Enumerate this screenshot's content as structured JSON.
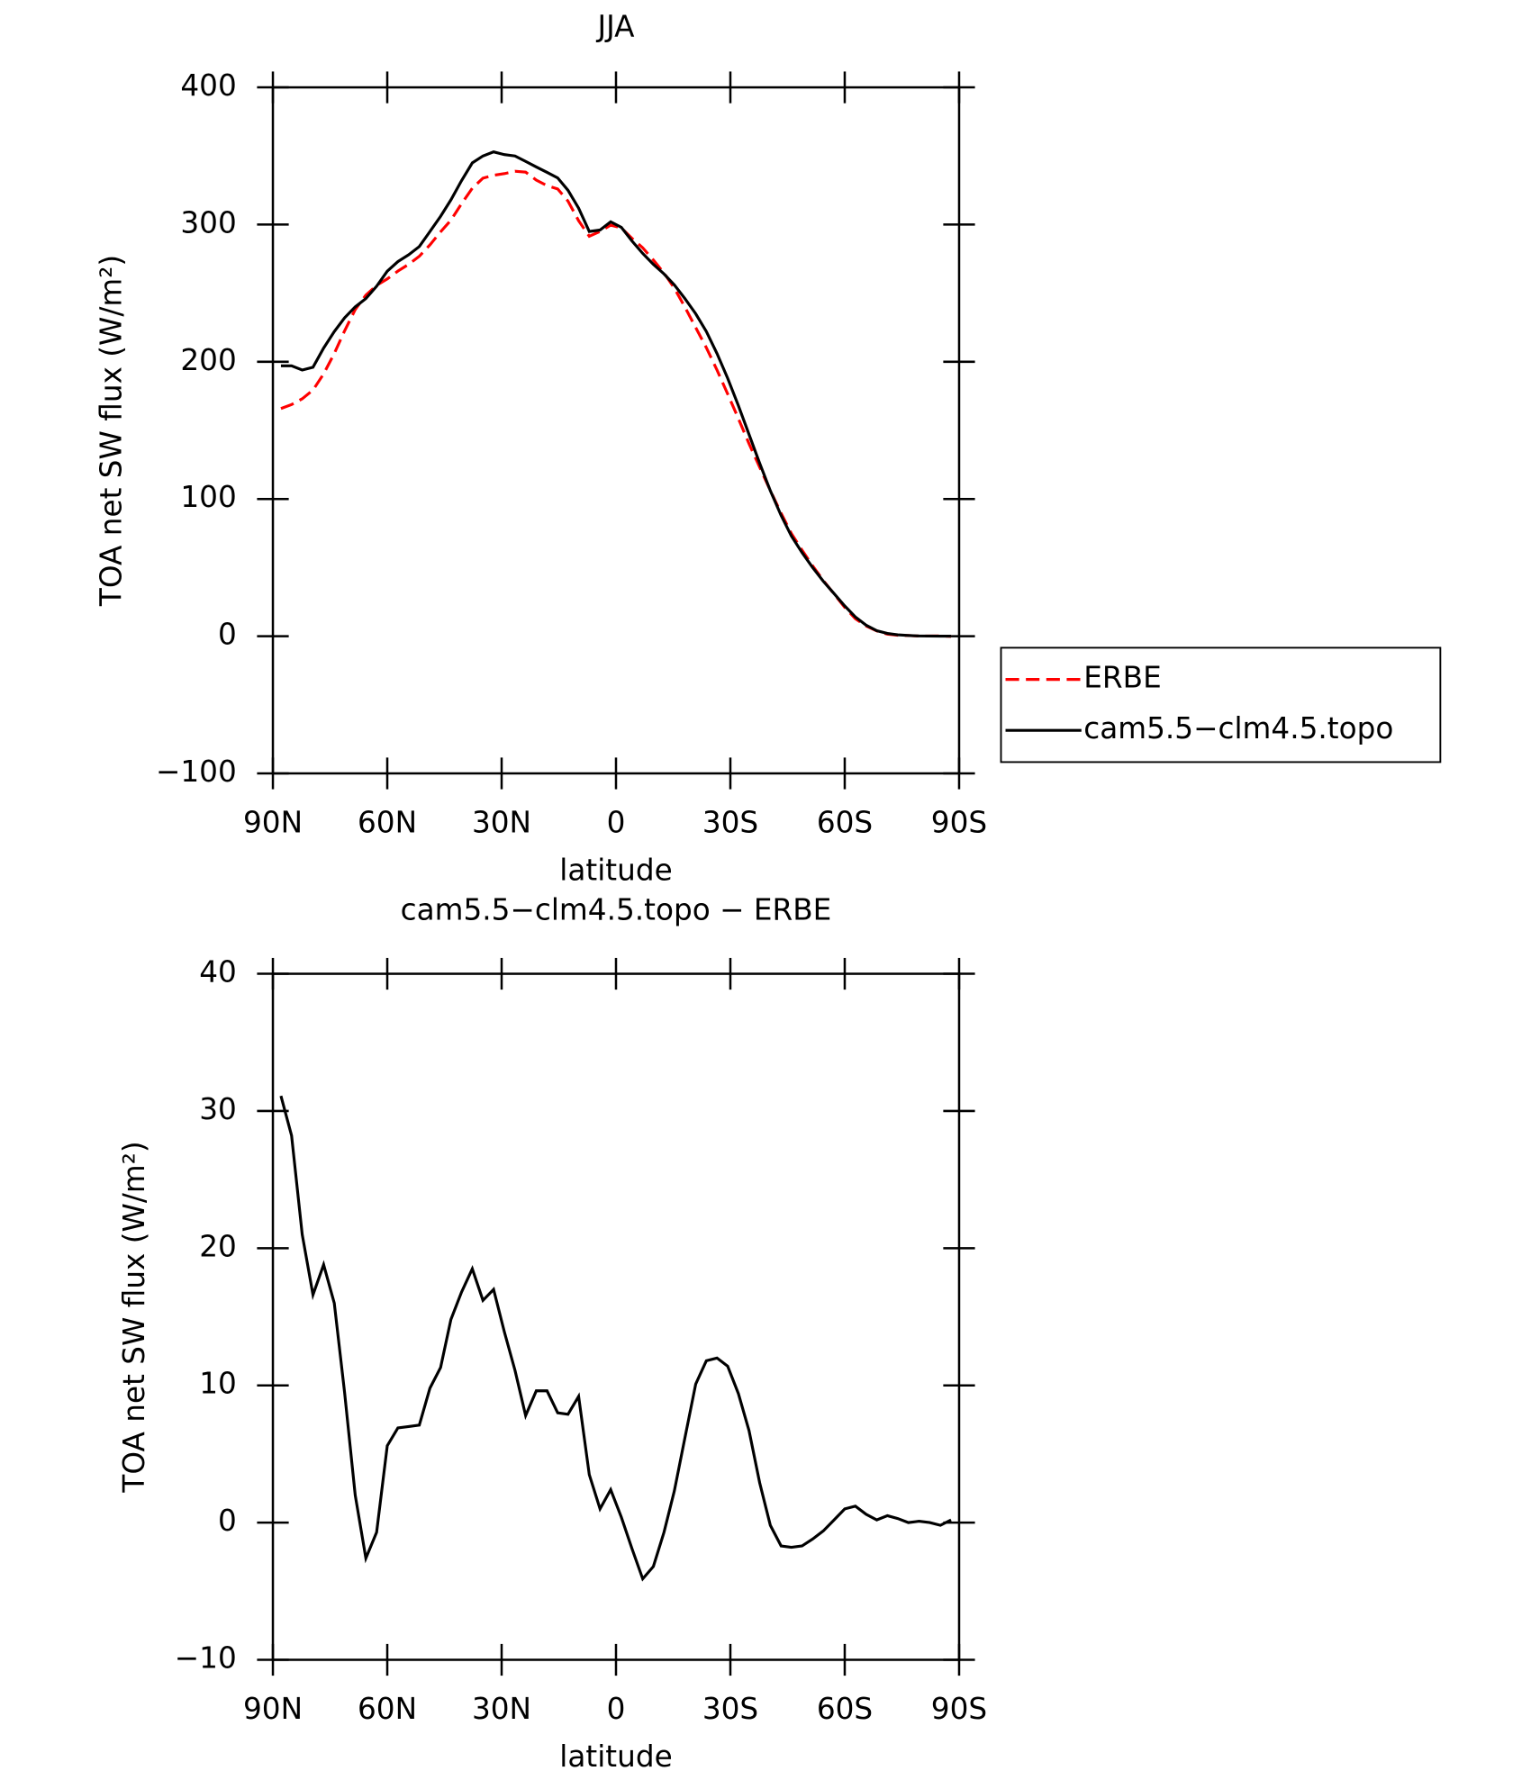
{
  "chart_data": [
    {
      "type": "line",
      "title": "JJA",
      "xlabel": "latitude",
      "ylabel": "TOA net SW flux (W/m²)",
      "x": [
        87.9,
        85.1,
        82.3,
        79.5,
        76.7,
        73.9,
        71.2,
        68.4,
        65.6,
        62.8,
        60.0,
        57.2,
        54.4,
        51.6,
        48.8,
        46.0,
        43.3,
        40.5,
        37.7,
        34.9,
        32.1,
        29.3,
        26.5,
        23.7,
        20.9,
        18.1,
        15.3,
        12.6,
        9.8,
        7.0,
        4.2,
        1.4,
        -1.4,
        -4.2,
        -7.0,
        -9.8,
        -12.6,
        -15.3,
        -18.1,
        -20.9,
        -23.7,
        -26.5,
        -29.3,
        -32.1,
        -34.9,
        -37.7,
        -40.5,
        -43.3,
        -46.0,
        -48.8,
        -51.6,
        -54.4,
        -57.2,
        -60.0,
        -62.8,
        -65.6,
        -68.4,
        -71.2,
        -73.9,
        -76.7,
        -79.5,
        -82.3,
        -85.1,
        -87.9
      ],
      "series": [
        {
          "name": "ERBE",
          "color": "#ff0000",
          "dash": true,
          "values": [
            165.9,
            168.8,
            173,
            179.4,
            191.2,
            206,
            222.5,
            238,
            248.6,
            255.7,
            260.4,
            266.1,
            271,
            276.9,
            285.2,
            294.7,
            303.2,
            315.2,
            326.5,
            333.8,
            336,
            337.1,
            338.9,
            338.2,
            332.4,
            328.4,
            326,
            317.1,
            302.8,
            291.5,
            295,
            299.6,
            297.6,
            289.9,
            283.1,
            274.2,
            264.7,
            253.7,
            239.8,
            224.9,
            210.2,
            194,
            176.6,
            158.6,
            140.3,
            123.1,
            106.2,
            89.7,
            74.8,
            62.7,
            51.2,
            40.6,
            30.8,
            21,
            12.8,
            7.4,
            3.8,
            1.5,
            0.7,
            0.5,
            0.1,
            0.1,
            0.2,
            -0.2
          ]
        },
        {
          "name": "cam5.5−clm4.5.topo",
          "color": "#000000",
          "dash": false,
          "values": [
            197,
            197,
            194,
            196,
            210,
            222,
            232,
            240,
            246,
            255,
            266,
            273,
            278,
            284,
            295,
            306,
            318,
            332,
            345,
            350,
            353,
            351,
            350,
            346,
            342,
            338,
            334,
            325,
            312,
            295,
            296,
            302,
            298,
            288,
            279,
            271,
            264,
            256,
            246,
            235,
            222,
            206,
            188,
            168,
            147,
            126,
            106,
            88,
            73,
            61,
            50,
            40,
            31,
            22,
            14,
            8,
            4,
            2,
            1,
            0.5,
            0.2,
            0.1,
            0,
            0
          ]
        }
      ],
      "xlim": [
        90,
        -90
      ],
      "xticks": [
        {
          "value": 90,
          "label": "90N"
        },
        {
          "value": 60,
          "label": "60N"
        },
        {
          "value": 30,
          "label": "30N"
        },
        0,
        {
          "value": -30,
          "label": "30S"
        },
        {
          "value": -60,
          "label": "60S"
        },
        {
          "value": -90,
          "label": "90S"
        }
      ],
      "ylim": [
        -100,
        400
      ],
      "yticks": [
        {
          "value": -100,
          "label": "−100"
        },
        0,
        100,
        200,
        300,
        400
      ],
      "legend": "right"
    },
    {
      "type": "line",
      "title": "cam5.5−clm4.5.topo − ERBE",
      "xlabel": "latitude",
      "ylabel": "TOA net SW flux (W/m²)",
      "x": [
        87.9,
        85.1,
        82.3,
        79.5,
        76.7,
        73.9,
        71.2,
        68.4,
        65.6,
        62.8,
        60.0,
        57.2,
        54.4,
        51.6,
        48.8,
        46.0,
        43.3,
        40.5,
        37.7,
        34.9,
        32.1,
        29.3,
        26.5,
        23.7,
        20.9,
        18.1,
        15.3,
        12.6,
        9.8,
        7.0,
        4.2,
        1.4,
        -1.4,
        -4.2,
        -7.0,
        -9.8,
        -12.6,
        -15.3,
        -18.1,
        -20.9,
        -23.7,
        -26.5,
        -29.3,
        -32.1,
        -34.9,
        -37.7,
        -40.5,
        -43.3,
        -46.0,
        -48.8,
        -51.6,
        -54.4,
        -57.2,
        -60.0,
        -62.8,
        -65.6,
        -68.4,
        -71.2,
        -73.9,
        -76.7,
        -79.5,
        -82.3,
        -85.1,
        -87.9
      ],
      "series": [
        {
          "color": "#000000",
          "dash": false,
          "values": [
            31.1,
            28.2,
            21,
            16.6,
            18.8,
            16,
            9.5,
            2,
            -2.6,
            -0.7,
            5.6,
            6.9,
            7,
            7.1,
            9.8,
            11.3,
            14.8,
            16.8,
            18.5,
            16.2,
            17,
            13.9,
            11.1,
            7.8,
            9.6,
            9.6,
            8,
            7.9,
            9.2,
            3.5,
            1,
            2.4,
            0.4,
            -1.9,
            -4.1,
            -3.2,
            -0.7,
            2.3,
            6.2,
            10.1,
            11.8,
            12,
            11.4,
            9.4,
            6.7,
            2.9,
            -0.2,
            -1.7,
            -1.8,
            -1.7,
            -1.2,
            -0.6,
            0.2,
            1,
            1.2,
            0.6,
            0.2,
            0.5,
            0.3,
            0,
            0.1,
            0,
            -0.2,
            0.2
          ]
        }
      ],
      "xlim": [
        90,
        -90
      ],
      "xticks": [
        {
          "value": 90,
          "label": "90N"
        },
        {
          "value": 60,
          "label": "60N"
        },
        {
          "value": 30,
          "label": "30N"
        },
        0,
        {
          "value": -30,
          "label": "30S"
        },
        {
          "value": -60,
          "label": "60S"
        },
        {
          "value": -90,
          "label": "90S"
        }
      ],
      "ylim": [
        -10,
        40
      ],
      "yticks": [
        {
          "value": -10,
          "label": "−10"
        },
        0,
        10,
        20,
        30,
        40
      ]
    }
  ]
}
